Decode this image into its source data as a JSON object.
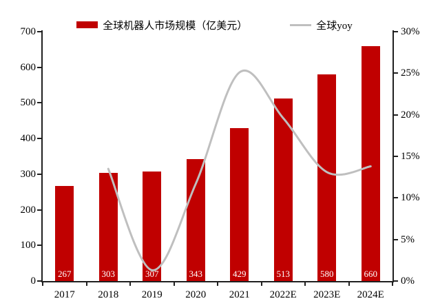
{
  "legend": {
    "bars_label": "全球机器人市场规模（亿美元）",
    "line_label": "全球yoy"
  },
  "colors": {
    "bar": "#C00000",
    "line": "#BFBFBF",
    "axis": "#1F1F1F",
    "bar_value_text": "#FFFFFF",
    "axis_text": "#000000"
  },
  "chart_data": {
    "type": "bar",
    "title": "",
    "categories": [
      "2017",
      "2018",
      "2019",
      "2020",
      "2021",
      "2022E",
      "2023E",
      "2024E"
    ],
    "series": [
      {
        "name": "全球机器人市场规模（亿美元）",
        "type": "bar",
        "axis": "left",
        "color": "#C00000",
        "values": [
          267,
          303,
          307,
          343,
          429,
          513,
          580,
          660
        ],
        "data_labels": [
          "267",
          "303",
          "307",
          "343",
          "429",
          "513",
          "580",
          "660"
        ]
      },
      {
        "name": "全球yoy",
        "type": "line-smooth",
        "axis": "right",
        "color": "#BFBFBF",
        "start_category_index": 1,
        "values_pct": [
          13.5,
          1.3,
          11.7,
          25.1,
          19.6,
          13.1,
          13.8
        ]
      }
    ],
    "left_axis": {
      "min": 0,
      "max": 700,
      "step": 100,
      "tick_labels": [
        "0",
        "100",
        "200",
        "300",
        "400",
        "500",
        "600",
        "700"
      ]
    },
    "right_axis": {
      "min": 0,
      "max": 30,
      "step": 5,
      "tick_labels": [
        "0%",
        "5%",
        "10%",
        "15%",
        "20%",
        "25%",
        "30%"
      ]
    },
    "grid": false,
    "legend_position": "top"
  }
}
